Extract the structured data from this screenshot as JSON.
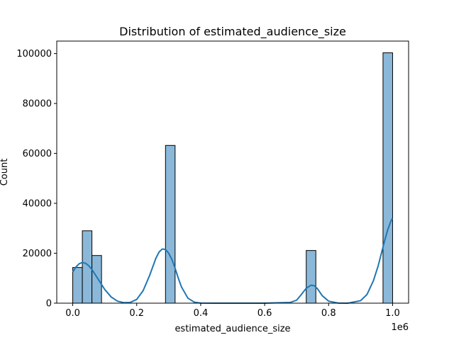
{
  "chart_data": {
    "type": "bar",
    "subtype": "histogram_with_kde",
    "title": "Distribution of estimated_audience_size",
    "xlabel": "estimated_audience_size",
    "ylabel": "Count",
    "x_multiplier_label": "1e6",
    "xlim": [
      -50000,
      1050000
    ],
    "ylim": [
      0,
      105000
    ],
    "x_ticks": [
      0,
      200000,
      400000,
      600000,
      800000,
      1000000
    ],
    "x_tick_labels": [
      "0.0",
      "0.2",
      "0.4",
      "0.6",
      "0.8",
      "1.0"
    ],
    "y_ticks": [
      0,
      20000,
      40000,
      60000,
      80000,
      100000
    ],
    "y_tick_labels": [
      "0",
      "20000",
      "40000",
      "60000",
      "80000",
      "100000"
    ],
    "bins": [
      {
        "x0": 0,
        "x1": 30000,
        "count": 14300
      },
      {
        "x0": 30000,
        "x1": 60000,
        "count": 29000
      },
      {
        "x0": 60000,
        "x1": 90000,
        "count": 19100
      },
      {
        "x0": 290000,
        "x1": 320000,
        "count": 63200
      },
      {
        "x0": 730000,
        "x1": 760000,
        "count": 21100
      },
      {
        "x0": 970000,
        "x1": 1000000,
        "count": 100300
      }
    ],
    "kde": {
      "x": [
        0,
        10000,
        20000,
        30000,
        40000,
        50000,
        60000,
        70000,
        80000,
        90000,
        100000,
        120000,
        140000,
        160000,
        180000,
        200000,
        220000,
        240000,
        260000,
        270000,
        280000,
        290000,
        300000,
        310000,
        320000,
        330000,
        340000,
        360000,
        380000,
        400000,
        450000,
        500000,
        600000,
        680000,
        700000,
        715000,
        730000,
        745000,
        755000,
        765000,
        780000,
        800000,
        830000,
        860000,
        900000,
        920000,
        940000,
        955000,
        965000,
        975000,
        985000,
        995000,
        1000000
      ],
      "y": [
        12500,
        14500,
        15800,
        16300,
        16000,
        15000,
        13500,
        11500,
        9500,
        7500,
        5500,
        2500,
        800,
        200,
        300,
        1500,
        5000,
        11000,
        18000,
        20500,
        21700,
        21500,
        20000,
        17500,
        14000,
        10000,
        6500,
        2000,
        400,
        50,
        0,
        0,
        0,
        300,
        1200,
        3500,
        6000,
        7200,
        7000,
        5800,
        3000,
        800,
        50,
        0,
        1000,
        3500,
        9000,
        15000,
        20000,
        25000,
        29500,
        33000,
        34000
      ]
    },
    "colors": {
      "bar_fill": "#8bb8d9",
      "bar_edge": "#000000",
      "kde_line": "#1f77b4"
    },
    "grid": false,
    "legend": "none"
  }
}
